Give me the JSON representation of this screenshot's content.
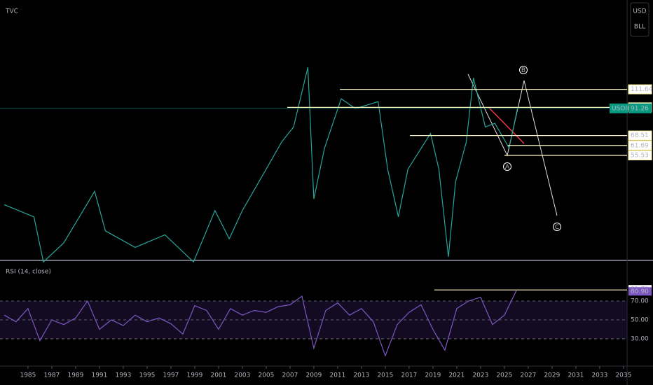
{
  "chart_data": [
    {
      "type": "line",
      "title": "TVC",
      "log_scale": true,
      "color": "#e0e0e0",
      "x": [
        1983,
        1985.5,
        1986.3,
        1988,
        1990.6,
        1991.5,
        1994,
        1996.5,
        1998.9,
        2000.7,
        2001.9,
        2003,
        2005,
        2006.3,
        2007.3,
        2008.5,
        2009.0,
        2009.9,
        2011.3,
        2012.5,
        2014.4,
        2015.2,
        2016.1,
        2016.9,
        2018.8,
        2019.5,
        2020.3,
        2020.9,
        2021.8,
        2022.4,
        2023.4,
        2024.2,
        2025.4,
        2026.1
      ],
      "series": [
        {
          "color": "#26a69a",
          "values": [
            33,
            29,
            18,
            22,
            38,
            25,
            21,
            24,
            18,
            31,
            23,
            31,
            48,
            64,
            75,
            141,
            35,
            60,
            101,
            91,
            98,
            48,
            29,
            48,
            70,
            48,
            19,
            42,
            64,
            126,
            75,
            78,
            60,
            91.26
          ]
        }
      ],
      "xlim": [
        1982.65,
        2035.3
      ],
      "ylim": [
        18.3,
        287
      ],
      "xticks": [
        1985,
        1987,
        1989,
        1991,
        1993,
        1995,
        1997,
        1999,
        2001,
        2003,
        2005,
        2007,
        2009,
        2011,
        2013,
        2015,
        2017,
        2019,
        2021,
        2023,
        2025,
        2027,
        2029,
        2031,
        2033,
        2035
      ],
      "levels": [
        111.64,
        92.25,
        68.51,
        61.69,
        55.53
      ],
      "last_price": {
        "label": "USOIL",
        "value": 91.26
      },
      "wave_labels": [
        "A",
        "B",
        "C"
      ],
      "currency_buttons": [
        "USD",
        "BLL"
      ]
    },
    {
      "type": "line",
      "title": "RSI (14, close)",
      "color": "#7e57c2",
      "x": [
        1983,
        1984,
        1985,
        1986,
        1987,
        1988,
        1989,
        1990,
        1991,
        1992,
        1993,
        1994,
        1995,
        1996,
        1997,
        1998,
        1999,
        2000,
        2001,
        2002,
        2003,
        2004,
        2005,
        2006,
        2007,
        2008,
        2009,
        2010,
        2011,
        2012,
        2013,
        2014,
        2015,
        2016,
        2017,
        2018,
        2019,
        2020,
        2021,
        2022,
        2023,
        2024,
        2025,
        2026
      ],
      "series": [
        {
          "color": "#7e57c2",
          "values": [
            55,
            48,
            62,
            28,
            50,
            45,
            52,
            70,
            40,
            50,
            44,
            55,
            48,
            52,
            46,
            35,
            65,
            60,
            40,
            62,
            55,
            60,
            58,
            64,
            66,
            75,
            20,
            60,
            68,
            55,
            62,
            48,
            12,
            45,
            58,
            66,
            40,
            18,
            62,
            70,
            74,
            45,
            55,
            80.9
          ]
        }
      ],
      "ylim": [
        3.3,
        108.5
      ],
      "yticks": [
        {
          "value": 70,
          "label": "70.00"
        },
        {
          "value": 50,
          "label": "50.00"
        },
        {
          "value": 30,
          "label": "30.00"
        }
      ],
      "level": {
        "value": 81.7,
        "label": "81.70"
      },
      "last_value": {
        "value": 80.9,
        "label": "80.90"
      }
    }
  ]
}
